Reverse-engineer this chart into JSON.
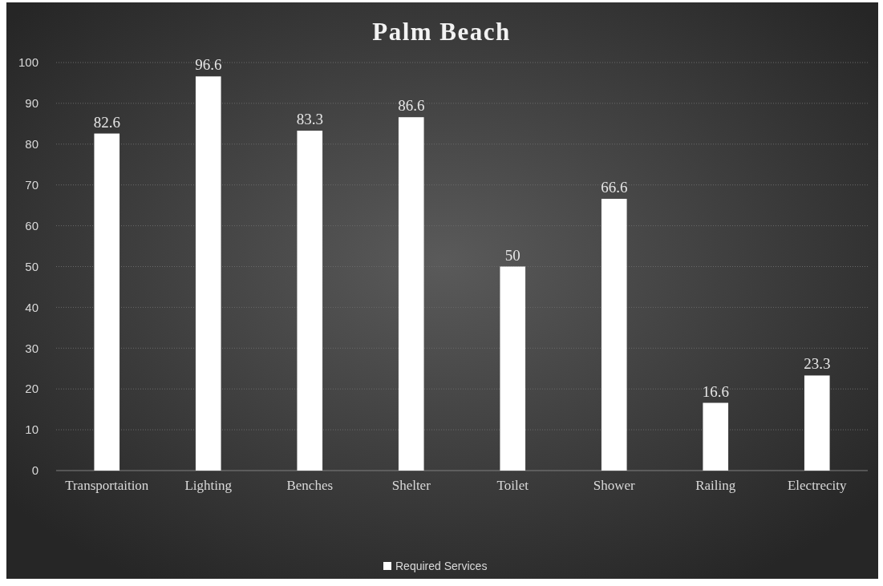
{
  "chart_data": {
    "type": "bar",
    "title": "Palm Beach",
    "categories": [
      "Transportaition",
      "Lighting",
      "Benches",
      "Shelter",
      "Toilet",
      "Shower",
      "Railing",
      "Electrecity"
    ],
    "series": [
      {
        "name": "Required Services",
        "color": "#ffffff",
        "values": [
          82.6,
          96.6,
          83.3,
          86.6,
          50,
          66.6,
          16.6,
          23.3
        ]
      }
    ],
    "ylim": [
      0,
      100
    ],
    "yticks": [
      0,
      10,
      20,
      30,
      40,
      50,
      60,
      70,
      80,
      90,
      100
    ],
    "grid": "y",
    "legend": "bottom",
    "data_labels": true
  }
}
